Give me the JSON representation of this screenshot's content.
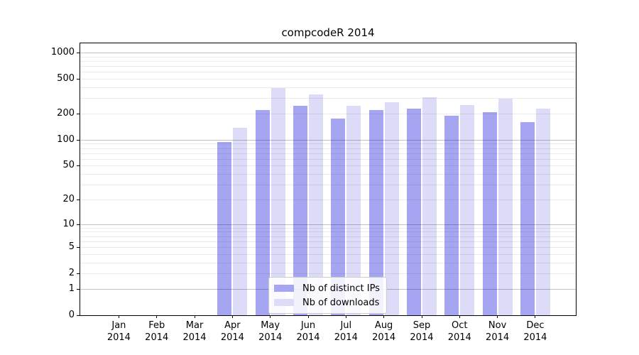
{
  "chart_data": {
    "type": "bar",
    "title": "compcodeR 2014",
    "categories": [
      "Jan 2014",
      "Feb 2014",
      "Mar 2014",
      "Apr 2014",
      "May 2014",
      "Jun 2014",
      "Jul 2014",
      "Aug 2014",
      "Sep 2014",
      "Oct 2014",
      "Nov 2014",
      "Dec 2014"
    ],
    "series": [
      {
        "name": "Nb of distinct IPs",
        "color": "#a5a5f2",
        "values": [
          0,
          0,
          0,
          95,
          220,
          248,
          176,
          221,
          227,
          188,
          208,
          160
        ]
      },
      {
        "name": "Nb of downloads",
        "color": "#dcdcf8",
        "values": [
          0,
          0,
          0,
          138,
          391,
          330,
          245,
          270,
          310,
          250,
          296,
          227
        ]
      }
    ],
    "y_scale": "log10(value+1)",
    "y_ticks": [
      0,
      1,
      2,
      5,
      10,
      20,
      50,
      100,
      200,
      500,
      1000
    ],
    "y_minor_grid": [
      2,
      3,
      4,
      5,
      6,
      7,
      8,
      9,
      20,
      30,
      40,
      50,
      60,
      70,
      80,
      90,
      200,
      300,
      400,
      500,
      600,
      700,
      800,
      900
    ],
    "y_major_grid": [
      1,
      10,
      100,
      1000
    ],
    "ylim": [
      0,
      1276
    ],
    "grid": true,
    "legend_position": "inside-bottom-center"
  }
}
